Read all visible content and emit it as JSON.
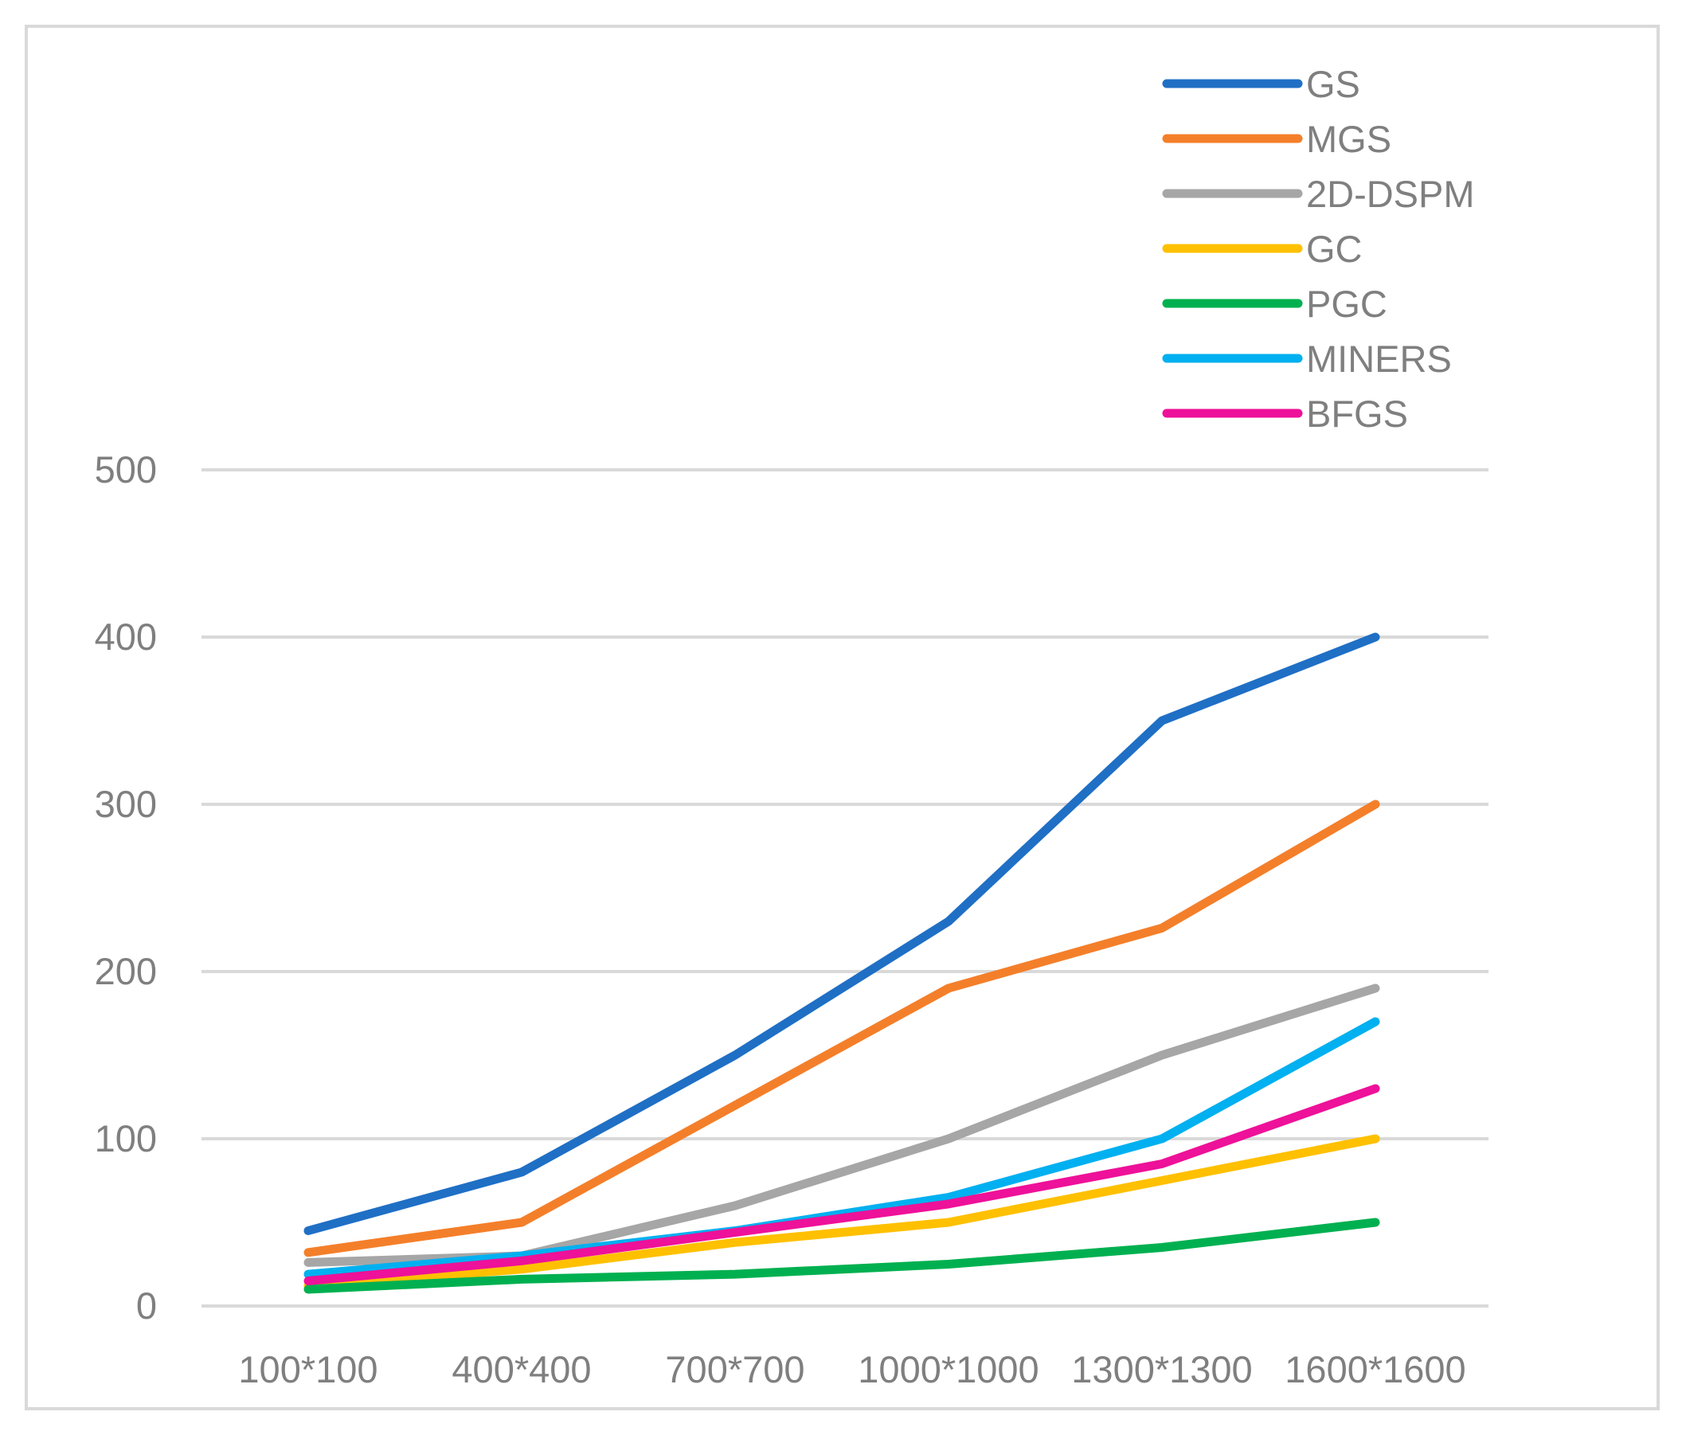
{
  "chart_data": {
    "type": "line",
    "title": "",
    "xlabel": "",
    "ylabel": "",
    "categories": [
      "100*100",
      "400*400",
      "700*700",
      "1000*1000",
      "1300*1300",
      "1600*1600"
    ],
    "ylim": [
      0,
      500
    ],
    "yticks": [
      0,
      100,
      200,
      300,
      400,
      500
    ],
    "grid": true,
    "legend_position": "top-right",
    "series": [
      {
        "name": "GS",
        "color": "#1f6fc5",
        "values": [
          45,
          80,
          150,
          230,
          350,
          400
        ]
      },
      {
        "name": "MGS",
        "color": "#f47f2a",
        "values": [
          32,
          50,
          120,
          190,
          226,
          300
        ]
      },
      {
        "name": "2D-DSPM",
        "color": "#a6a6a6",
        "values": [
          26,
          30,
          60,
          100,
          150,
          190
        ]
      },
      {
        "name": "GC",
        "color": "#ffc000",
        "values": [
          12,
          22,
          38,
          50,
          75,
          100
        ]
      },
      {
        "name": "PGC",
        "color": "#00b050",
        "values": [
          10,
          16,
          19,
          25,
          35,
          50
        ]
      },
      {
        "name": "MINERS",
        "color": "#00b0f0",
        "values": [
          19,
          30,
          45,
          65,
          100,
          170
        ]
      },
      {
        "name": "BFGS",
        "color": "#ee1199",
        "values": [
          15,
          27,
          44,
          61,
          85,
          130
        ]
      }
    ]
  }
}
